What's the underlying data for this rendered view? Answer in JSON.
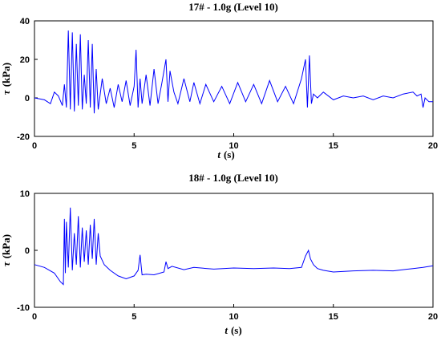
{
  "chart_data": [
    {
      "type": "line",
      "title": "17# - 1.0g (Level 10)",
      "xlabel_var": "t",
      "xlabel_unit": "(s)",
      "ylabel_var": "τ",
      "ylabel_unit": "(kPa)",
      "xlim": [
        0,
        20
      ],
      "ylim": [
        -20,
        40
      ],
      "xticks": [
        "0",
        "5",
        "10",
        "15",
        "20"
      ],
      "yticks": [
        "-20",
        "0",
        "20",
        "40"
      ],
      "grid": false,
      "line_color": "#0000ff",
      "series": [
        {
          "x": [
            0,
            0.5,
            0.8,
            1.0,
            1.2,
            1.4,
            1.5,
            1.6,
            1.7,
            1.8,
            1.9,
            2.0,
            2.1,
            2.2,
            2.3,
            2.4,
            2.5,
            2.6,
            2.7,
            2.8,
            2.9,
            3.0,
            3.1,
            3.2,
            3.4,
            3.6,
            3.8,
            4.0,
            4.2,
            4.4,
            4.6,
            4.8,
            5.0,
            5.1,
            5.2,
            5.3,
            5.4,
            5.6,
            5.8,
            6.0,
            6.2,
            6.4,
            6.6,
            6.7,
            6.8,
            7.0,
            7.2,
            7.5,
            7.8,
            8.0,
            8.3,
            8.6,
            9.0,
            9.4,
            9.8,
            10.2,
            10.6,
            11.0,
            11.4,
            11.8,
            12.2,
            12.6,
            13.0,
            13.4,
            13.6,
            13.7,
            13.8,
            13.9,
            14.0,
            14.2,
            14.5,
            15.0,
            15.5,
            16.0,
            16.5,
            17.0,
            17.5,
            18.0,
            18.5,
            19.0,
            19.2,
            19.4,
            19.5,
            19.6,
            19.8,
            20.0
          ],
          "y": [
            0,
            -1,
            -3,
            3,
            1,
            -4,
            7,
            -5,
            35,
            -6,
            34,
            -7,
            28,
            -4,
            33,
            -6,
            12,
            -3,
            30,
            -5,
            28,
            -8,
            15,
            -6,
            10,
            -3,
            5,
            -5,
            7,
            -2,
            9,
            -4,
            6,
            25,
            -5,
            10,
            -3,
            12,
            -4,
            15,
            -3,
            8,
            20,
            -2,
            14,
            3,
            -3,
            10,
            -2,
            8,
            -3,
            7,
            -2,
            6,
            -3,
            8,
            -2,
            7,
            -3,
            9,
            -2,
            6,
            -3,
            10,
            20,
            -5,
            22,
            -3,
            2,
            0,
            3,
            -1,
            1,
            0,
            1,
            -1,
            1,
            0,
            2,
            3,
            1,
            2,
            -5,
            0,
            -2,
            -2
          ]
        }
      ]
    },
    {
      "type": "line",
      "title": "18# - 1.0g (Level 10)",
      "xlabel_var": "t",
      "xlabel_unit": "(s)",
      "ylabel_var": "τ",
      "ylabel_unit": "(kPa)",
      "xlim": [
        0,
        20
      ],
      "ylim": [
        -10,
        10
      ],
      "xticks": [
        "0",
        "5",
        "10",
        "15",
        "20"
      ],
      "yticks": [
        "-10",
        "0",
        "10"
      ],
      "grid": false,
      "line_color": "#0000ff",
      "series": [
        {
          "x": [
            0,
            0.5,
            1.0,
            1.3,
            1.45,
            1.5,
            1.55,
            1.6,
            1.7,
            1.8,
            1.9,
            2.0,
            2.1,
            2.2,
            2.3,
            2.4,
            2.5,
            2.6,
            2.7,
            2.8,
            2.9,
            3.0,
            3.1,
            3.2,
            3.3,
            3.5,
            3.8,
            4.2,
            4.6,
            5.0,
            5.2,
            5.3,
            5.4,
            5.6,
            6.0,
            6.5,
            6.6,
            6.7,
            6.9,
            7.5,
            8.0,
            9.0,
            10.0,
            11.0,
            12.0,
            12.8,
            13.4,
            13.6,
            13.75,
            13.85,
            14.0,
            14.2,
            14.5,
            15.0,
            16.0,
            17.0,
            18.0,
            19.0,
            19.5,
            20.0
          ],
          "y": [
            -2.5,
            -3,
            -4,
            -5.5,
            -6,
            5.5,
            -4,
            5,
            -3,
            7.5,
            -3.5,
            3,
            -2.5,
            6,
            -3,
            4,
            -2,
            3.5,
            -2.5,
            4.5,
            -1.5,
            5.5,
            -2.5,
            3,
            -1,
            -2.5,
            -3.5,
            -4.5,
            -5,
            -4.5,
            -3.5,
            -0.8,
            -4.3,
            -4.2,
            -4.3,
            -3.8,
            -2,
            -3.2,
            -2.8,
            -3.4,
            -3,
            -3.3,
            -3.1,
            -3.2,
            -3.1,
            -3.2,
            -3,
            -1,
            0,
            -1.5,
            -2.5,
            -3.2,
            -3.5,
            -3.8,
            -3.6,
            -3.5,
            -3.6,
            -3.2,
            -3,
            -2.7
          ]
        }
      ]
    }
  ]
}
